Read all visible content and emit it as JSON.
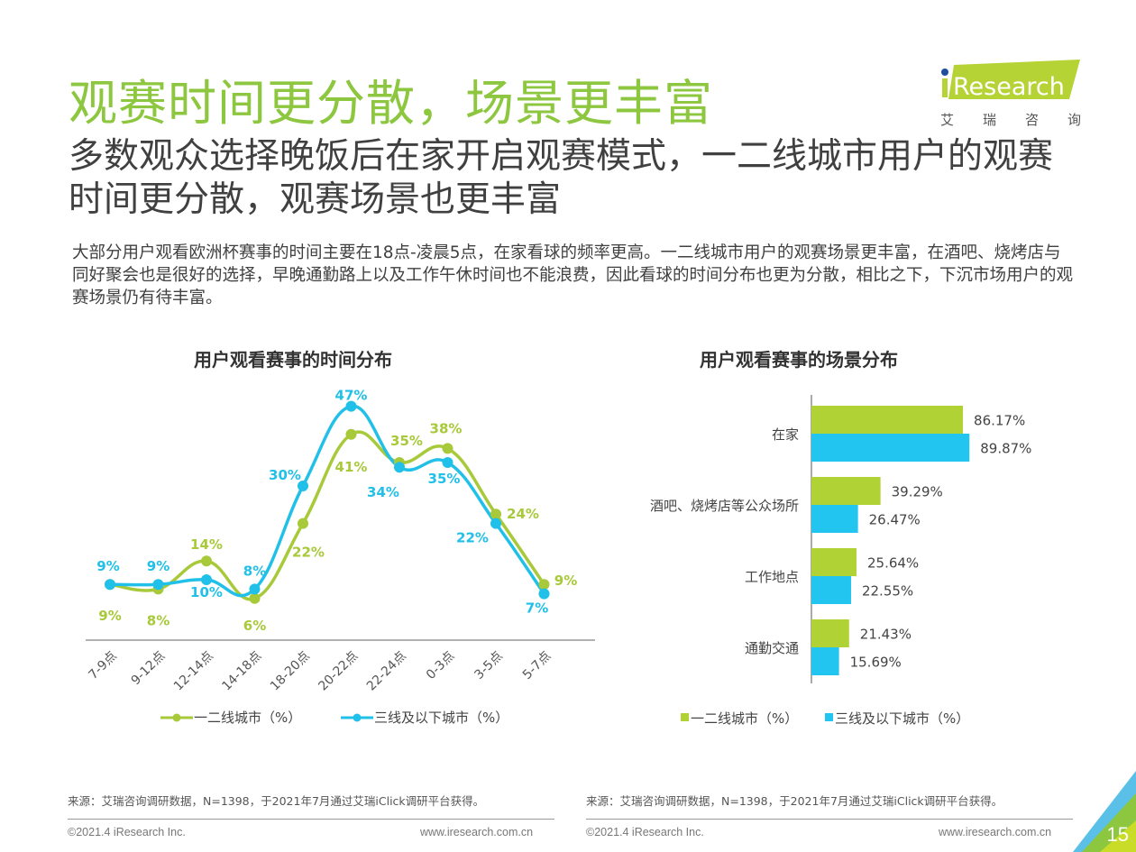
{
  "header": {
    "title": "观赛时间更分散，场景更丰富",
    "subtitle": "多数观众选择晚饭后在家开启观赛模式，一二线城市用户的观赛时间更分散，观赛场景也更丰富",
    "description": "大部分用户观看欧洲杯赛事的时间主要在18点-凌晨5点，在家看球的频率更高。一二线城市用户的观赛场景更丰富，在酒吧、烧烤店与同好聚会也是很好的选择，早晚通勤路上以及工作午休时间也不能浪费，因此看球的时间分布也更为分散，相比之下，下沉市场用户的观赛场景仍有待丰富。"
  },
  "logo": {
    "brand": "iResearch",
    "cn": [
      "艾",
      "瑞",
      "咨",
      "询"
    ],
    "colors": {
      "green": "#b5d334",
      "blue": "#1f4e9e"
    }
  },
  "chart_data": [
    {
      "type": "line",
      "title": "用户观看赛事的时间分布",
      "categories": [
        "7-9点",
        "9-12点",
        "12-14点",
        "14-18点",
        "18-20点",
        "20-22点",
        "22-24点",
        "0-3点",
        "3-5点",
        "5-7点"
      ],
      "series": [
        {
          "name": "一二线城市（%）",
          "color": "#a8c93a",
          "values": [
            9,
            8,
            14,
            6,
            22,
            41,
            35,
            38,
            24,
            9
          ],
          "labels": [
            "9%",
            "8%",
            "14%",
            "6%",
            "22%",
            "41%",
            "35%",
            "38%",
            "24%",
            "9%"
          ]
        },
        {
          "name": "三线及以下城市（%）",
          "color": "#21c0e8",
          "values": [
            9,
            9,
            10,
            8,
            30,
            47,
            34,
            35,
            22,
            7
          ],
          "labels": [
            "9%",
            "9%",
            "10%",
            "8%",
            "30%",
            "47%",
            "34%",
            "35%",
            "22%",
            "7%"
          ]
        }
      ],
      "ylim": [
        0,
        50
      ],
      "grid": false,
      "legend": "bottom"
    },
    {
      "type": "bar",
      "orientation": "horizontal",
      "title": "用户观看赛事的场景分布",
      "categories": [
        "在家",
        "酒吧、烧烤店等公众场所",
        "工作地点",
        "通勤交通"
      ],
      "series": [
        {
          "name": "一二线城市（%）",
          "color": "#b0d235",
          "values": [
            86.17,
            39.29,
            25.64,
            21.43
          ],
          "labels": [
            "86.17%",
            "39.29%",
            "25.64%",
            "21.43%"
          ]
        },
        {
          "name": "三线及以下城市（%）",
          "color": "#21c5ef",
          "values": [
            89.87,
            26.47,
            22.55,
            15.69
          ],
          "labels": [
            "89.87%",
            "26.47%",
            "22.55%",
            "15.69%"
          ]
        }
      ],
      "xlim": [
        0,
        100
      ],
      "grid": false,
      "legend": "bottom"
    }
  ],
  "footer": {
    "source_left": "来源：艾瑞咨询调研数据，N=1398，于2021年7月通过艾瑞iClick调研平台获得。",
    "source_right": "来源：艾瑞咨询调研数据，N=1398，于2021年7月通过艾瑞iClick调研平台获得。",
    "copyright": "©2021.4 iResearch Inc.",
    "website": "www.iresearch.com.cn",
    "page_number": "15"
  }
}
